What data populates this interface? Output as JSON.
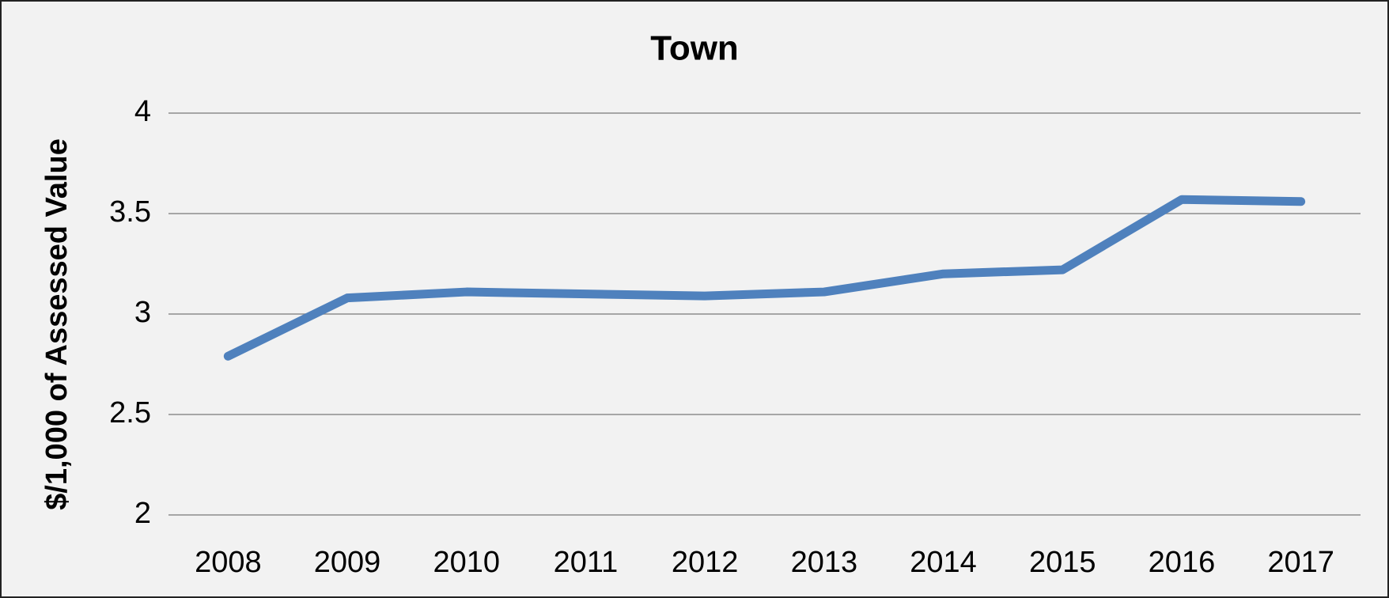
{
  "chart_data": {
    "type": "line",
    "title": "Town",
    "y_label": "$/1,000 of Assessed Value",
    "categories": [
      "2008",
      "2009",
      "2010",
      "2011",
      "2012",
      "2013",
      "2014",
      "2015",
      "2016",
      "2017"
    ],
    "series": [
      {
        "name": "Town",
        "color": "#4f81bd",
        "values": [
          2.79,
          3.08,
          3.11,
          3.1,
          3.09,
          3.11,
          3.2,
          3.22,
          3.57,
          3.56
        ]
      }
    ],
    "ylim": [
      2,
      4
    ],
    "yticks": [
      2,
      2.5,
      3,
      3.5,
      4
    ],
    "grid": true
  }
}
